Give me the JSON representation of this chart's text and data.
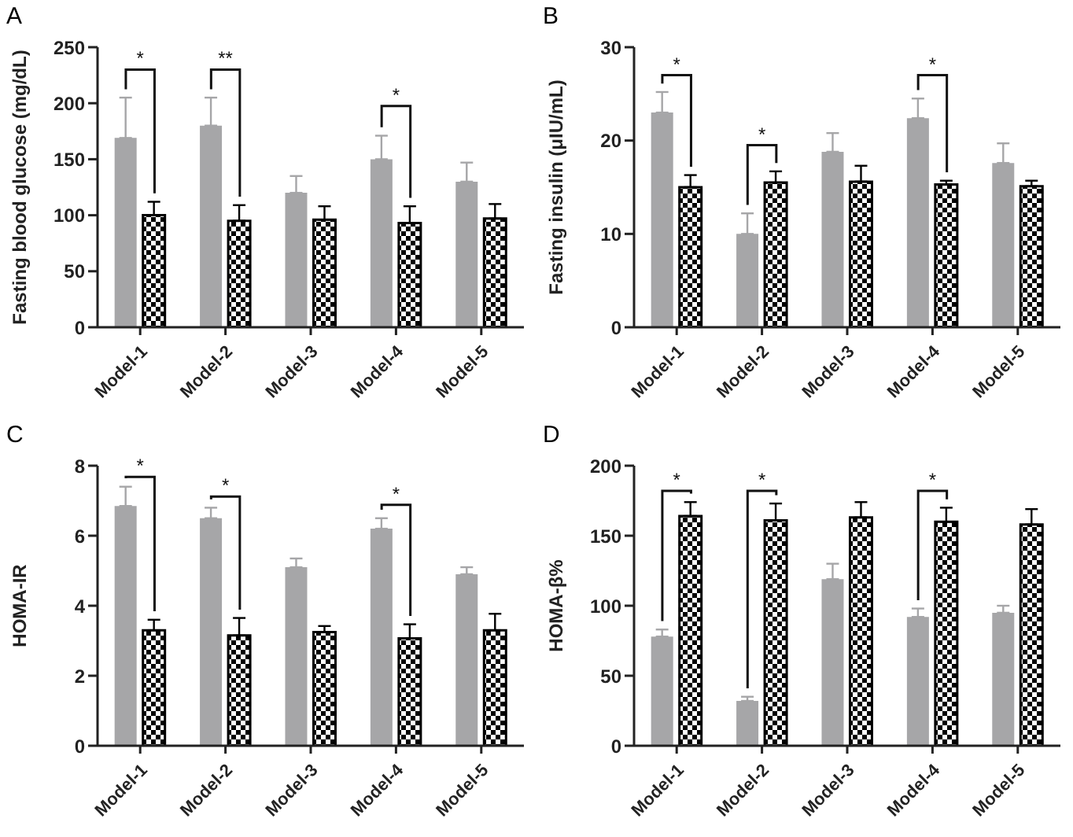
{
  "chart_data": [
    {
      "type": "bar",
      "title": "A",
      "ylabel": "Fasting blood glucose (mg/dL)",
      "categories": [
        "Model-1",
        "Model-2",
        "Model-3",
        "Model-4",
        "Model-5"
      ],
      "ylim": [
        0,
        250
      ],
      "yticks": [
        0,
        50,
        100,
        150,
        200,
        250
      ],
      "series": [
        {
          "color": "#a6a6a8",
          "values": [
            169,
            180,
            120,
            150,
            130
          ],
          "errors": [
            [
              169,
              205
            ],
            [
              180,
              205
            ],
            [
              120,
              135
            ],
            [
              150,
              171
            ],
            [
              130,
              147
            ]
          ]
        },
        {
          "color": "#000000",
          "values": [
            100,
            95,
            96,
            93,
            97
          ],
          "errors": [
            [
              100,
              112
            ],
            [
              95,
              109
            ],
            [
              96,
              108
            ],
            [
              93,
              108
            ],
            [
              97,
              110
            ]
          ]
        }
      ],
      "annotations": [
        "*",
        "**",
        "*"
      ]
    },
    {
      "type": "bar",
      "title": "B",
      "ylabel": "Fasting insulin (μIU/mL)",
      "categories": [
        "Model-1",
        "Model-2",
        "Model-3",
        "Model-4",
        "Model-5"
      ],
      "ylim": [
        0,
        30
      ],
      "yticks": [
        0,
        10,
        20,
        30
      ],
      "series": [
        {
          "color": "#a6a6a8",
          "values": [
            23,
            10,
            18.8,
            22.4,
            17.6
          ],
          "errors": [
            [
              23,
              25.2
            ],
            [
              10,
              12.2
            ],
            [
              18.8,
              20.8
            ],
            [
              22.4,
              24.5
            ],
            [
              17.6,
              19.7
            ]
          ]
        },
        {
          "color": "#000000",
          "values": [
            15,
            15.5,
            15.6,
            15.3,
            15.1
          ],
          "errors": [
            [
              15,
              16.3
            ],
            [
              15.5,
              16.7
            ],
            [
              15.6,
              17.3
            ],
            [
              15.3,
              15.7
            ],
            [
              15.1,
              15.7
            ]
          ]
        }
      ],
      "annotations": [
        "*",
        "*",
        "*"
      ]
    },
    {
      "type": "bar",
      "title": "C",
      "ylabel": "HOMA-IR",
      "categories": [
        "Model-1",
        "Model-2",
        "Model-3",
        "Model-4",
        "Model-5"
      ],
      "ylim": [
        0,
        8
      ],
      "yticks": [
        0,
        2,
        4,
        6,
        8
      ],
      "series": [
        {
          "color": "#a6a6a8",
          "values": [
            6.85,
            6.5,
            5.1,
            6.2,
            4.9
          ],
          "errors": [
            [
              6.85,
              7.4
            ],
            [
              6.5,
              6.8
            ],
            [
              5.1,
              5.35
            ],
            [
              6.2,
              6.5
            ],
            [
              4.9,
              5.1
            ]
          ]
        },
        {
          "color": "#000000",
          "values": [
            3.3,
            3.15,
            3.25,
            3.07,
            3.3
          ],
          "errors": [
            [
              3.3,
              3.6
            ],
            [
              3.15,
              3.65
            ],
            [
              3.25,
              3.42
            ],
            [
              3.07,
              3.47
            ],
            [
              3.3,
              3.77
            ]
          ]
        }
      ],
      "annotations": [
        "*",
        "*",
        "*"
      ]
    },
    {
      "type": "bar",
      "title": "D",
      "ylabel": "HOMA-β%",
      "categories": [
        "Model-1",
        "Model-2",
        "Model-3",
        "Model-4",
        "Model-5"
      ],
      "ylim": [
        0,
        200
      ],
      "yticks": [
        0,
        50,
        100,
        150,
        200
      ],
      "series": [
        {
          "color": "#a6a6a8",
          "values": [
            78,
            32,
            119,
            92,
            95
          ],
          "errors": [
            [
              78,
              83
            ],
            [
              32,
              35
            ],
            [
              119,
              130
            ],
            [
              92,
              98
            ],
            [
              95,
              100
            ]
          ]
        },
        {
          "color": "#000000",
          "values": [
            164,
            161,
            163,
            160,
            158
          ],
          "errors": [
            [
              164,
              174
            ],
            [
              161,
              173
            ],
            [
              163,
              174
            ],
            [
              160,
              170
            ],
            [
              158,
              169
            ]
          ]
        }
      ],
      "annotations": [
        "*",
        "*",
        "*"
      ]
    }
  ]
}
